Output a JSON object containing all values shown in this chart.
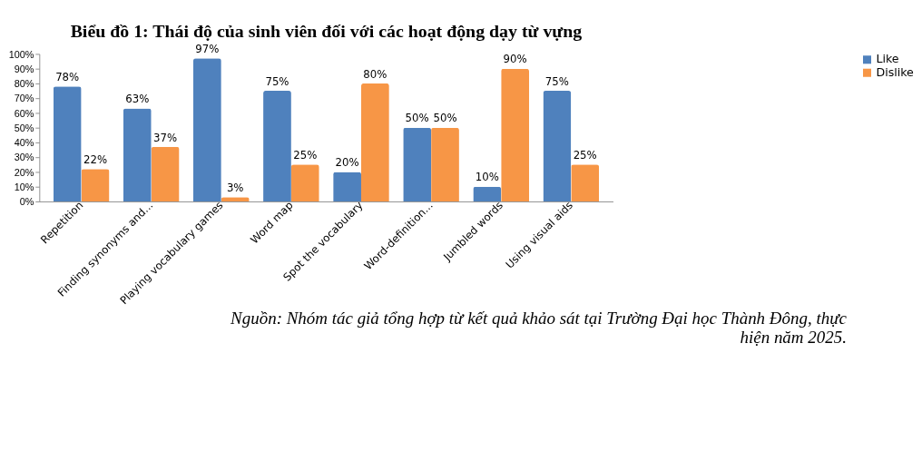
{
  "chart_data": {
    "type": "bar",
    "title": "Biểu đồ 1: Thái độ của sinh viên đối với các hoạt động dạy từ vựng",
    "categories": [
      "Repetition",
      "Finding synonyms and...",
      "Playing vocabulary games",
      "Word map",
      "Spot the vocabulary",
      "Word-definition...",
      "Jumbled words",
      "Using visual aids"
    ],
    "series": [
      {
        "name": "Like",
        "color": "#4f81bd",
        "values": [
          78,
          63,
          97,
          75,
          20,
          50,
          10,
          75
        ],
        "value_labels": [
          "78%",
          "63%",
          "97%",
          "75%",
          "20%",
          "50%",
          "10%",
          "75%"
        ]
      },
      {
        "name": "Dislike",
        "color": "#f79646",
        "values": [
          22,
          37,
          3,
          25,
          80,
          50,
          90,
          25
        ],
        "value_labels": [
          "22%",
          "37%",
          "3%",
          "25%",
          "80%",
          "50%",
          "90%",
          "25%"
        ]
      }
    ],
    "ylim": [
      0,
      100
    ],
    "yticks": [
      {
        "value": 0,
        "label": "0%"
      },
      {
        "value": 10,
        "label": "10%"
      },
      {
        "value": 20,
        "label": "20%"
      },
      {
        "value": 30,
        "label": "30%"
      },
      {
        "value": 40,
        "label": "40%"
      },
      {
        "value": 50,
        "label": "50%"
      },
      {
        "value": 60,
        "label": "60%"
      },
      {
        "value": 70,
        "label": "70%"
      },
      {
        "value": 80,
        "label": "80%"
      },
      {
        "value": 90,
        "label": "90%"
      },
      {
        "value": 100,
        "label": "100%"
      }
    ],
    "grid": false,
    "legend": "right",
    "annotations": [
      "Nguồn: Nhóm tác giả tổng hợp từ kết quả khảo sát tại Trường Đại học Thành Đông, thực hiện năm 2025."
    ]
  }
}
